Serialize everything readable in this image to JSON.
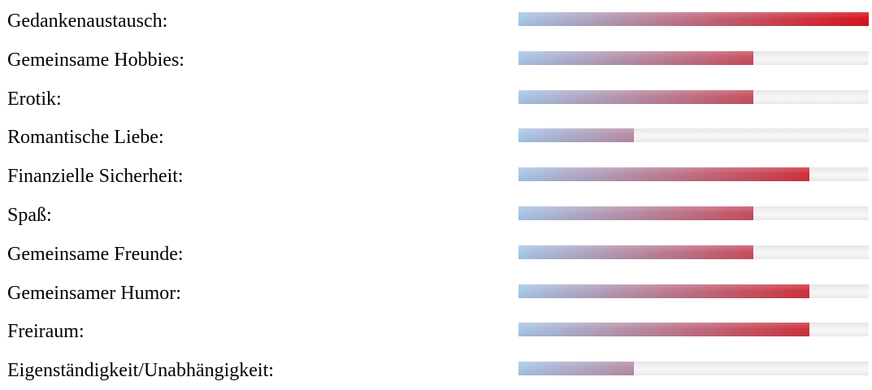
{
  "chart_data": {
    "type": "bar",
    "orientation": "horizontal",
    "categories": [
      "Gedankenaustausch:",
      "Gemeinsame Hobbies:",
      "Erotik:",
      "Romantische Liebe:",
      "Finanzielle Sicherheit:",
      "Spaß:",
      "Gemeinsame Freunde:",
      "Gemeinsamer Humor:",
      "Freiraum:",
      "Eigenständigkeit/Unabhängigkeit:"
    ],
    "values": [
      1.0,
      0.67,
      0.67,
      0.33,
      0.83,
      0.67,
      0.67,
      0.83,
      0.83,
      0.33
    ],
    "ylim": [
      0,
      1
    ],
    "grid": false,
    "colors": {
      "gradient_start": "#a8c8e8",
      "gradient_end": "#d8141c",
      "track": "#f2f2f2"
    }
  }
}
